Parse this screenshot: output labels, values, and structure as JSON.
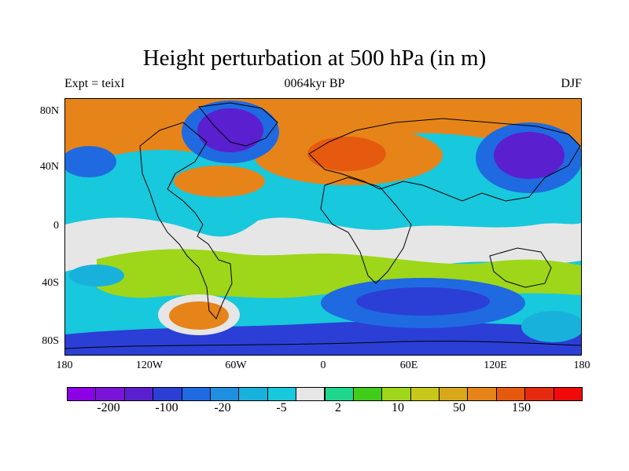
{
  "map": {
    "title": "Height perturbation at 500 hPa (in m)",
    "left_label": "Expt = teixI",
    "center_label": "0064kyr BP",
    "right_label": "DJF",
    "lat_ticks": [
      "80N",
      "40N",
      "0",
      "40S",
      "80S"
    ],
    "lon_ticks": [
      "180",
      "120W",
      "60W",
      "0",
      "60E",
      "120E",
      "180"
    ],
    "colorbar": {
      "colors": [
        "#8c00e6",
        "#7b14d9",
        "#5a1fcf",
        "#2b3fd6",
        "#1f6ae0",
        "#1f8fe0",
        "#18b1dc",
        "#18c8dc",
        "#e6e6e6",
        "#1ed68c",
        "#42cc1a",
        "#9ed61a",
        "#c8c81a",
        "#d8a81a",
        "#e6841a",
        "#e65a10",
        "#e62a10",
        "#f00a0a"
      ],
      "labels": [
        "-200",
        "-100",
        "-20",
        "-5",
        "2",
        "10",
        "50",
        "150"
      ]
    },
    "regions": [
      {
        "id": "atlantic-high",
        "color": "#e6841a",
        "lon": 20,
        "lat": 40
      },
      {
        "id": "europe-core",
        "color": "#e65a10",
        "lon": 15,
        "lat": 45
      },
      {
        "id": "greenland-low",
        "color": "#5a1fcf",
        "lon": -70,
        "lat": 60
      },
      {
        "id": "siberia-low",
        "color": "#5a1fcf",
        "lon": 145,
        "lat": 50
      },
      {
        "id": "southern-ocean-low",
        "color": "#2b3fd6",
        "lon": 75,
        "lat": -50
      },
      {
        "id": "pacific-south-high",
        "color": "#e6841a",
        "lon": -110,
        "lat": -48
      }
    ]
  }
}
